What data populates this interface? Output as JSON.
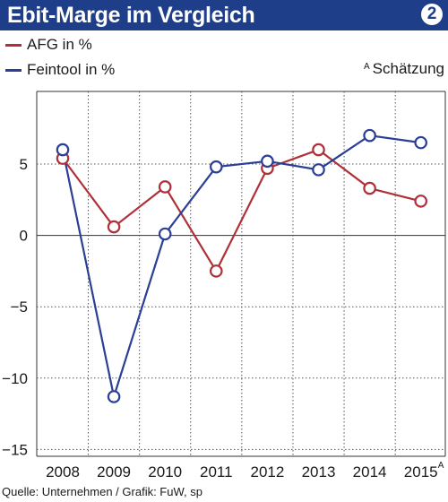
{
  "chart_data": {
    "type": "line",
    "title": "Ebit-Marge im Vergleich",
    "badge": "2",
    "x": [
      "2008",
      "2009",
      "2010",
      "2011",
      "2012",
      "2013",
      "2014",
      "2015"
    ],
    "series": [
      {
        "name": "AFG in %",
        "color": "#b0303a",
        "values": [
          5.4,
          0.6,
          3.4,
          -2.5,
          4.7,
          6.0,
          3.3,
          2.4
        ]
      },
      {
        "name": "Feintool in %",
        "color": "#2a3f95",
        "values": [
          6.0,
          -11.3,
          0.1,
          4.8,
          5.2,
          4.6,
          7.0,
          6.5
        ]
      }
    ],
    "y_ticks": [
      "5",
      "0",
      "−5",
      "−10",
      "−15"
    ],
    "y_tick_values": [
      5,
      0,
      -5,
      -10,
      -15
    ],
    "ylim": [
      -15,
      10
    ],
    "estimate_marker": "A",
    "estimate_label": "Schätzung",
    "grid": "dotted",
    "legend_position": "top-left",
    "source": "Quelle:  Unternehmen / Grafik: FuW, sp"
  }
}
